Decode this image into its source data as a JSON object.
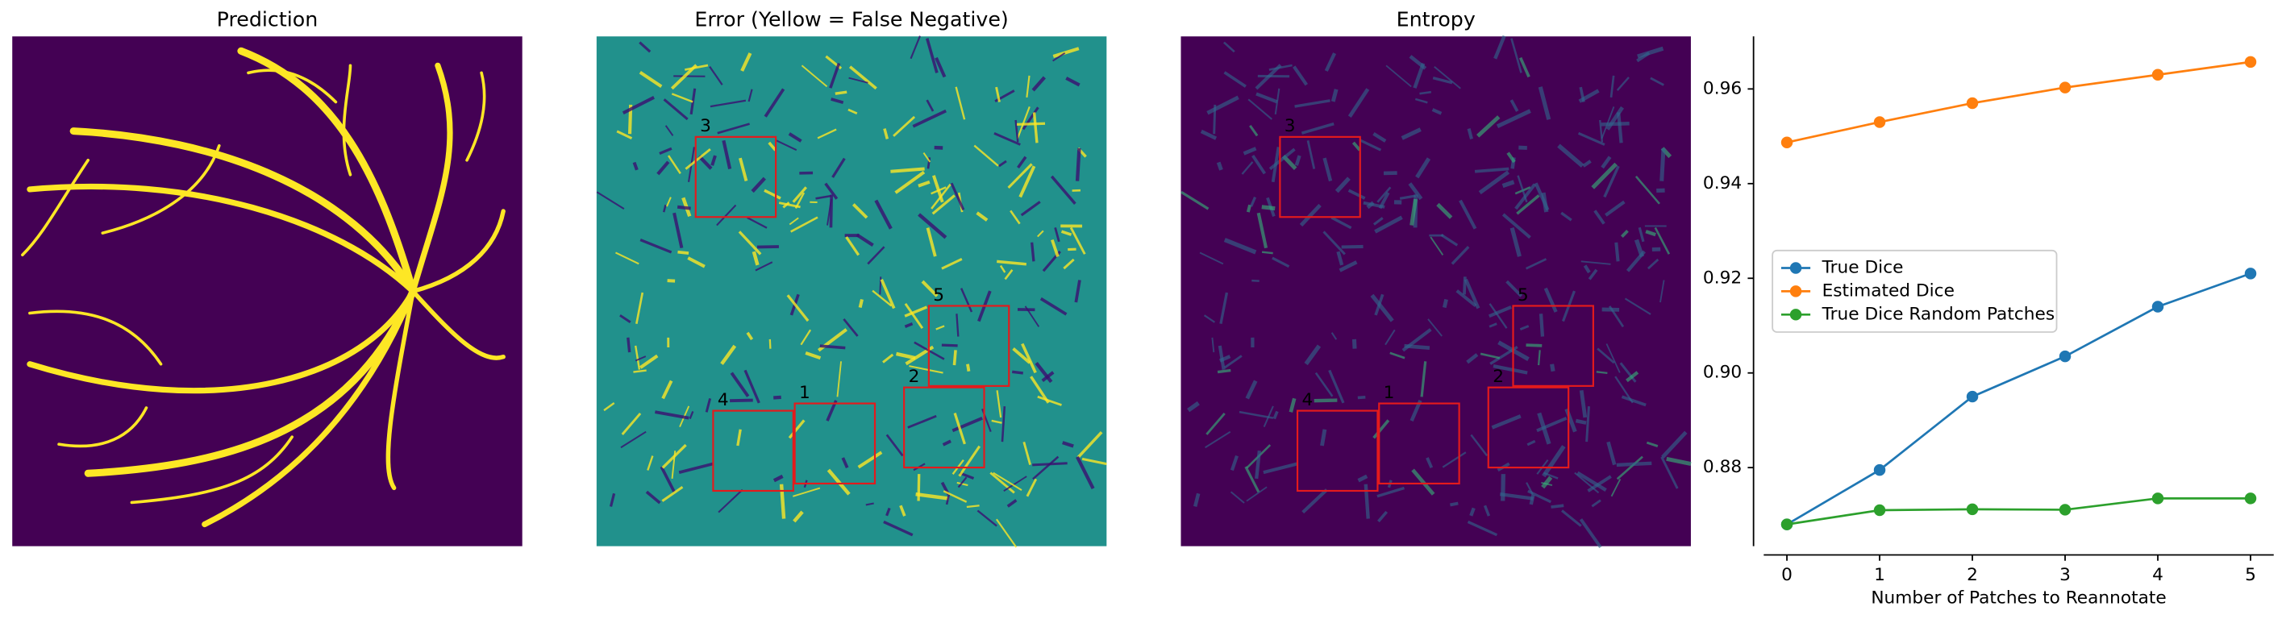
{
  "panels": [
    {
      "title": "Prediction"
    },
    {
      "title": "Error (Yellow = False Negative)",
      "box_labels": [
        "1",
        "2",
        "3",
        "4",
        "5"
      ]
    },
    {
      "title": "Entropy",
      "box_labels": [
        "1",
        "2",
        "3",
        "4",
        "5"
      ]
    }
  ],
  "chart_data": {
    "type": "line",
    "xlabel": "Number of Patches to Reannotate",
    "x": [
      0,
      1,
      2,
      3,
      4,
      5
    ],
    "series": [
      {
        "name": "True Dice",
        "color": "#1f77b4",
        "values": [
          0.868,
          0.8795,
          0.895,
          0.9035,
          0.914,
          0.921
        ]
      },
      {
        "name": "Estimated Dice",
        "color": "#ff7f0e",
        "values": [
          0.9487,
          0.953,
          0.957,
          0.9603,
          0.963,
          0.9657
        ]
      },
      {
        "name": "True Dice Random Patches",
        "color": "#2ca02c",
        "values": [
          0.868,
          0.871,
          0.8712,
          0.8711,
          0.8735,
          0.8735
        ]
      }
    ],
    "xlim": [
      -0.25,
      5.25
    ],
    "ylim": [
      0.8634,
      0.9711
    ],
    "xticks": [
      0,
      1,
      2,
      3,
      4,
      5
    ],
    "yticks": [
      0.88,
      {
        "value": 0.9,
        "label": "0.90"
      },
      0.92,
      0.94,
      0.96
    ],
    "legend": "center left",
    "grid": false
  }
}
